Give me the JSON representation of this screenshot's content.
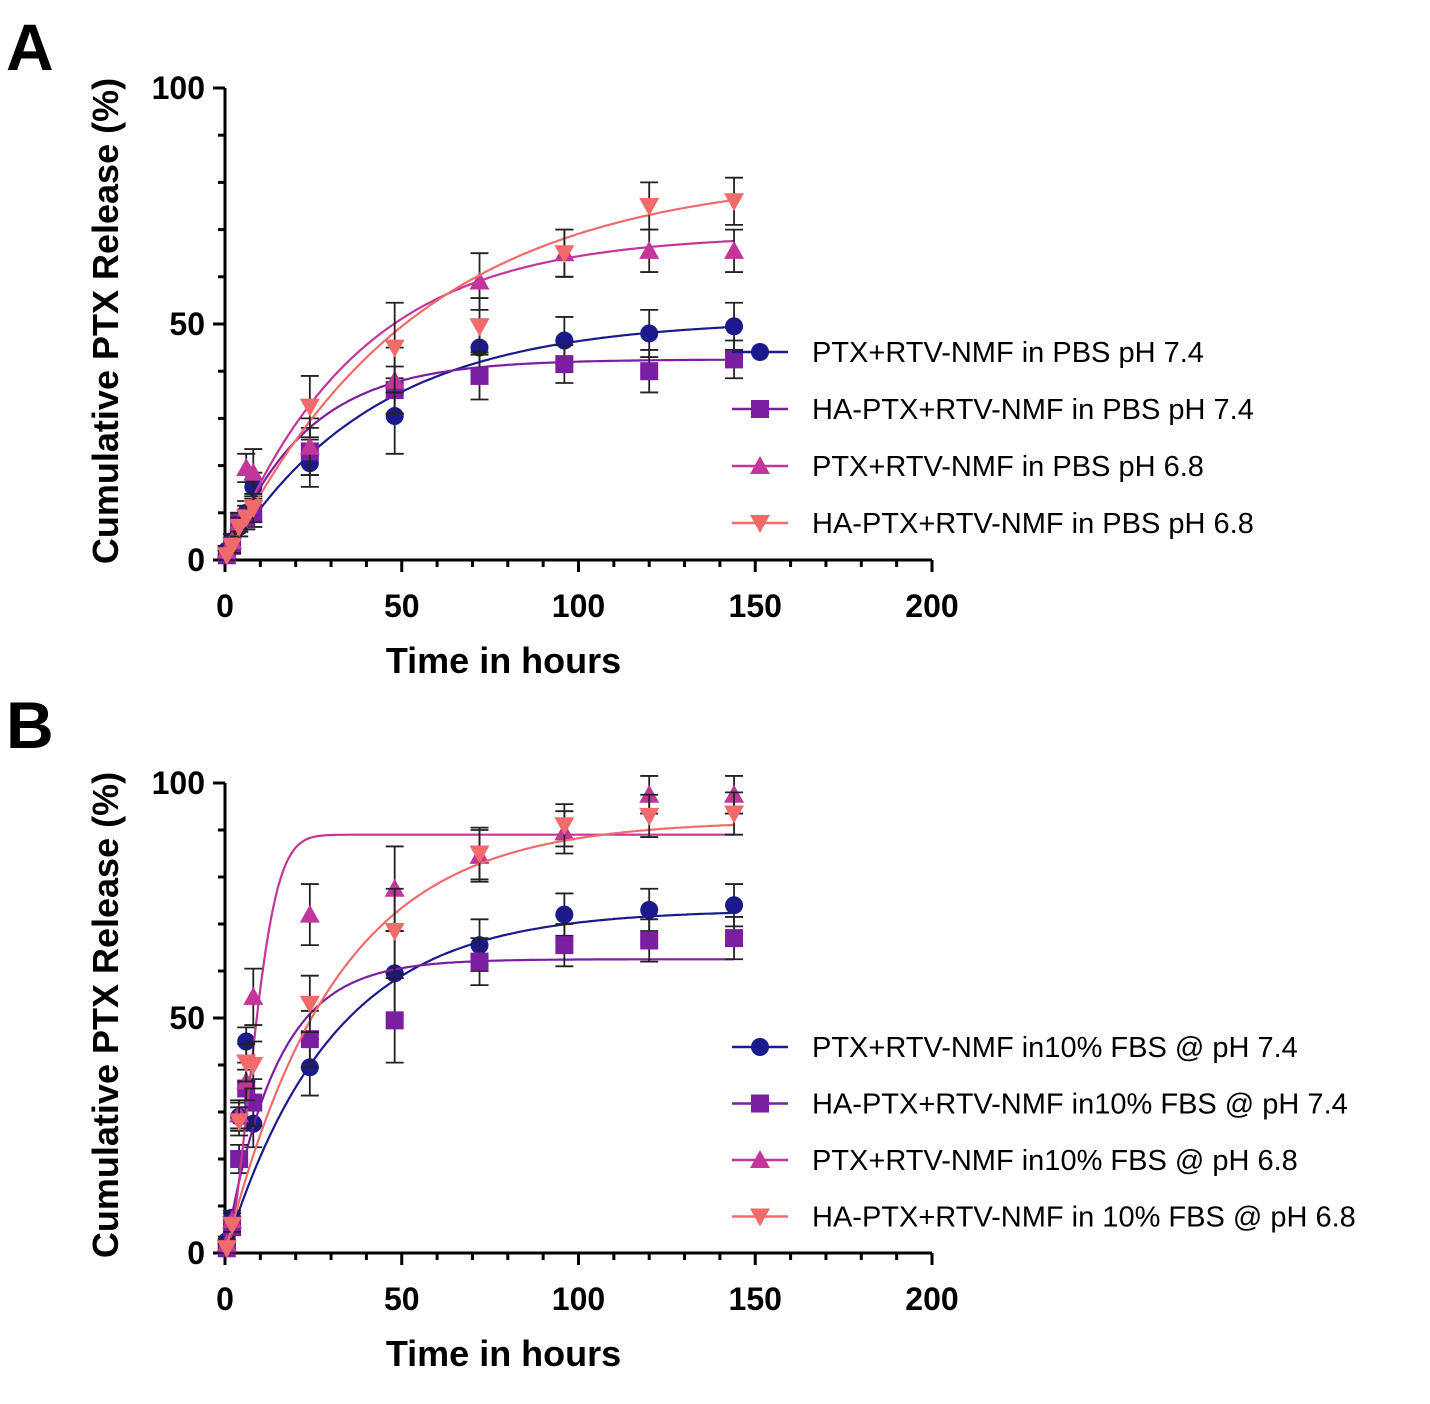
{
  "panels": [
    {
      "letter": "A"
    },
    {
      "letter": "B"
    }
  ],
  "chart_data": [
    {
      "type": "scatter",
      "panel": "A",
      "xlabel": "Time in hours",
      "ylabel": "Cumulative PTX Release (%)",
      "xlim": [
        0,
        200
      ],
      "ylim": [
        0,
        100
      ],
      "xticks": [
        0,
        50,
        100,
        150,
        200
      ],
      "yticks": [
        0,
        50,
        100
      ],
      "legend_position": "right",
      "series": [
        {
          "name": "PTX+RTV-NMF in PBS pH 7.4",
          "color": "#1a1a8c",
          "marker": "circle",
          "x": [
            0.5,
            2,
            4,
            6,
            8,
            24,
            48,
            72,
            96,
            120,
            144
          ],
          "y": [
            2,
            4,
            7,
            10,
            15.5,
            20.5,
            30.5,
            45,
            46.5,
            48,
            49.5
          ],
          "err": [
            1,
            1.5,
            2,
            2.5,
            3,
            5,
            8,
            6,
            5,
            5,
            5
          ],
          "fit": {
            "plateau": 51,
            "k": 0.024
          }
        },
        {
          "name": "HA-PTX+RTV-NMF in PBS pH 7.4",
          "color": "#7b1fa2",
          "marker": "square",
          "x": [
            0.5,
            2,
            4,
            6,
            8,
            24,
            48,
            72,
            96,
            120,
            144
          ],
          "y": [
            1,
            3,
            8,
            9,
            10,
            23,
            36,
            39,
            41.5,
            40,
            42.5
          ],
          "err": [
            1,
            1.5,
            2,
            2.5,
            3,
            5,
            5,
            5,
            4,
            4.5,
            4
          ],
          "fit": {
            "plateau": 42.5,
            "k": 0.045
          }
        },
        {
          "name": "PTX+RTV-NMF in PBS pH 6.8",
          "color": "#c2369a",
          "marker": "triangle-up",
          "x": [
            0.5,
            2,
            4,
            6,
            8,
            24,
            48,
            72,
            96,
            120,
            144
          ],
          "y": [
            2,
            4,
            8,
            19.5,
            18.5,
            24,
            38,
            59,
            65,
            65.5,
            65.5
          ],
          "err": [
            1,
            1.5,
            2,
            3,
            5,
            6,
            7,
            6,
            5,
            4.5,
            4.5
          ],
          "fit": {
            "plateau": 69,
            "k": 0.027
          }
        },
        {
          "name": "HA-PTX+RTV-NMF in PBS pH 6.8",
          "color": "#f26b6b",
          "marker": "triangle-down",
          "x": [
            0.5,
            2,
            4,
            6,
            8,
            24,
            48,
            72,
            96,
            120,
            144
          ],
          "y": [
            1,
            3,
            7,
            9,
            11,
            32.5,
            45,
            49.5,
            65,
            75,
            76
          ],
          "err": [
            1,
            1.5,
            2,
            2.5,
            3,
            6.5,
            9.5,
            6,
            5,
            5,
            5
          ],
          "fit": {
            "plateau": 82,
            "k": 0.0185
          }
        }
      ]
    },
    {
      "type": "scatter",
      "panel": "B",
      "xlabel": "Time in hours",
      "ylabel": "Cumulative PTX Release (%)",
      "xlim": [
        0,
        200
      ],
      "ylim": [
        0,
        100
      ],
      "xticks": [
        0,
        50,
        100,
        150,
        200
      ],
      "yticks": [
        0,
        50,
        100
      ],
      "legend_position": "bottom-right",
      "series": [
        {
          "name": "PTX+RTV-NMF in10% FBS @ pH 7.4",
          "color": "#1a1a8c",
          "marker": "circle",
          "x": [
            0.5,
            2,
            4,
            6,
            8,
            24,
            48,
            72,
            96,
            120,
            144
          ],
          "y": [
            2.5,
            7.5,
            29,
            45,
            27.5,
            39.5,
            59.5,
            65.5,
            72,
            73,
            74
          ],
          "err": [
            1,
            1.5,
            3,
            3,
            5,
            6,
            9,
            5.5,
            4.5,
            4.5,
            4.5
          ],
          "fit": {
            "plateau": 73,
            "k": 0.033
          }
        },
        {
          "name": "HA-PTX+RTV-NMF in10% FBS @ pH 7.4",
          "color": "#7b1fa2",
          "marker": "square",
          "x": [
            0.5,
            2,
            4,
            6,
            8,
            24,
            48,
            72,
            96,
            120,
            144
          ],
          "y": [
            1,
            5.5,
            20,
            35,
            32,
            45.5,
            49.5,
            62,
            65.5,
            66.5,
            67
          ],
          "err": [
            1,
            1.5,
            3,
            4,
            5,
            6,
            9,
            5,
            4.5,
            4.5,
            4.5
          ],
          "fit": {
            "plateau": 62.5,
            "k": 0.07
          }
        },
        {
          "name": "PTX+RTV-NMF in10% FBS @ pH 6.8",
          "color": "#c2369a",
          "marker": "triangle-up",
          "x": [
            0.5,
            2,
            4,
            6,
            8,
            24,
            48,
            72,
            96,
            120,
            144
          ],
          "y": [
            2,
            7,
            29.5,
            36.5,
            54.5,
            72,
            77.5,
            84.5,
            89.5,
            97.5,
            97.5
          ],
          "err": [
            1,
            1.5,
            3,
            4,
            6,
            6.5,
            9,
            5.5,
            4.5,
            4,
            4
          ],
          "fit": {
            "plateau": 89,
            "k": 0.1,
            "n": 1.8
          }
        },
        {
          "name": "HA-PTX+RTV-NMF in 10% FBS @ pH 6.8",
          "color": "#f26b6b",
          "marker": "triangle-down",
          "x": [
            0.5,
            2,
            4,
            6,
            8,
            24,
            48,
            72,
            96,
            120,
            144
          ],
          "y": [
            1,
            6,
            28,
            40.5,
            40,
            53,
            68.5,
            85,
            91,
            93,
            93.5
          ],
          "err": [
            1,
            1.5,
            3,
            4,
            5,
            6,
            9,
            5.5,
            4.5,
            4.5,
            4.5
          ],
          "fit": {
            "plateau": 92,
            "k": 0.032
          }
        }
      ]
    }
  ]
}
